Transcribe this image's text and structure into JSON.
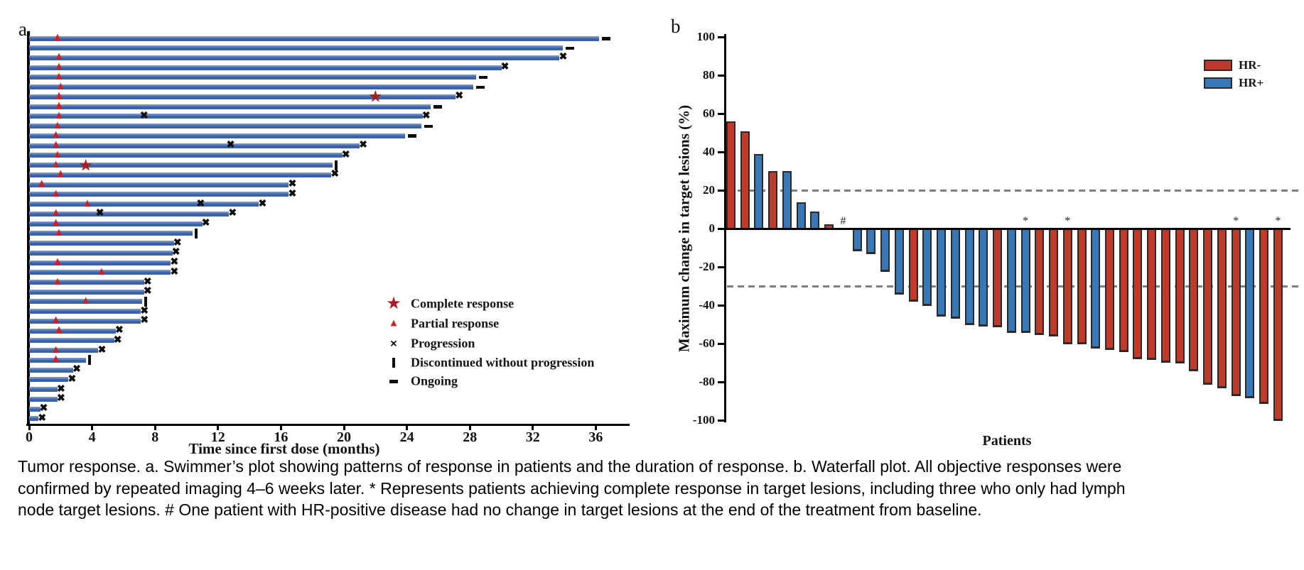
{
  "colors": {
    "swimmer_bar": "#3A62A7",
    "swimmer_bar_light": "#8CA2CE",
    "pr_triangle": "#C2252B",
    "cr_star": "#A81E24",
    "black_marker": "#0D0D0D",
    "hr_negative": "#C03A2B",
    "hr_positive": "#3878B4",
    "bar_outline": "#2B2B2B",
    "dashed_line": "#7F7F7F"
  },
  "chart_data": [
    {
      "type": "bar",
      "subtype": "swimmer",
      "panel_label": "a",
      "xlabel": "Time since first dose (months)",
      "x_ticks": [
        0,
        4,
        8,
        12,
        16,
        20,
        24,
        28,
        32,
        36
      ],
      "xlim": [
        0,
        38
      ],
      "duration_unit": "months",
      "legend": [
        {
          "symbol": "star",
          "label": "Complete response"
        },
        {
          "symbol": "triangle",
          "label": "Partial response"
        },
        {
          "symbol": "x",
          "label": "Progression"
        },
        {
          "symbol": "vbar",
          "label": "Discontinued without progression"
        },
        {
          "symbol": "dash",
          "label": "Ongoing"
        }
      ],
      "bars": [
        {
          "duration": 36.2,
          "end": "ongoing",
          "events": [
            {
              "type": "partial_response",
              "month": 1.8
            }
          ]
        },
        {
          "duration": 33.9,
          "end": "ongoing",
          "events": []
        },
        {
          "duration": 33.7,
          "end": "progression",
          "events": [
            {
              "type": "partial_response",
              "month": 1.9
            }
          ]
        },
        {
          "duration": 30.0,
          "end": "progression",
          "events": [
            {
              "type": "partial_response",
              "month": 1.9
            }
          ]
        },
        {
          "duration": 28.4,
          "end": "ongoing",
          "events": [
            {
              "type": "partial_response",
              "month": 1.9
            }
          ]
        },
        {
          "duration": 28.2,
          "end": "ongoing",
          "events": [
            {
              "type": "partial_response",
              "month": 2.0
            }
          ]
        },
        {
          "duration": 27.1,
          "end": "progression",
          "events": [
            {
              "type": "partial_response",
              "month": 1.9
            },
            {
              "type": "complete_response",
              "month": 22.0
            }
          ]
        },
        {
          "duration": 25.5,
          "end": "ongoing",
          "events": [
            {
              "type": "partial_response",
              "month": 1.9
            }
          ]
        },
        {
          "duration": 25.0,
          "end": "progression",
          "events": [
            {
              "type": "partial_response",
              "month": 1.9
            },
            {
              "type": "progression",
              "month": 7.3
            }
          ]
        },
        {
          "duration": 24.9,
          "end": "ongoing",
          "events": [
            {
              "type": "partial_response",
              "month": 1.8
            }
          ]
        },
        {
          "duration": 23.9,
          "end": "ongoing",
          "events": [
            {
              "type": "partial_response",
              "month": 1.7
            }
          ]
        },
        {
          "duration": 21.0,
          "end": "progression",
          "events": [
            {
              "type": "partial_response",
              "month": 1.7
            },
            {
              "type": "progression",
              "month": 12.8
            }
          ]
        },
        {
          "duration": 19.9,
          "end": "progression",
          "events": [
            {
              "type": "partial_response",
              "month": 1.8
            }
          ]
        },
        {
          "duration": 19.3,
          "end": "discontinued",
          "events": [
            {
              "type": "partial_response",
              "month": 1.7
            },
            {
              "type": "complete_response",
              "month": 3.6
            }
          ]
        },
        {
          "duration": 19.2,
          "end": "progression",
          "events": [
            {
              "type": "partial_response",
              "month": 2.0
            }
          ]
        },
        {
          "duration": 16.5,
          "end": "progression",
          "events": [
            {
              "type": "partial_response",
              "month": 0.8
            }
          ]
        },
        {
          "duration": 16.5,
          "end": "progression",
          "events": [
            {
              "type": "partial_response",
              "month": 1.7
            }
          ]
        },
        {
          "duration": 14.6,
          "end": "progression",
          "events": [
            {
              "type": "partial_response",
              "month": 3.7
            },
            {
              "type": "progression",
              "month": 10.9
            }
          ]
        },
        {
          "duration": 12.7,
          "end": "progression",
          "events": [
            {
              "type": "partial_response",
              "month": 1.7
            },
            {
              "type": "progression",
              "month": 4.5
            }
          ]
        },
        {
          "duration": 11.0,
          "end": "progression",
          "events": [
            {
              "type": "partial_response",
              "month": 1.7
            }
          ]
        },
        {
          "duration": 10.4,
          "end": "discontinued",
          "events": [
            {
              "type": "partial_response",
              "month": 1.9
            }
          ]
        },
        {
          "duration": 9.2,
          "end": "progression",
          "events": []
        },
        {
          "duration": 9.1,
          "end": "progression",
          "events": []
        },
        {
          "duration": 9.0,
          "end": "progression",
          "events": [
            {
              "type": "partial_response",
              "month": 1.8
            }
          ]
        },
        {
          "duration": 9.0,
          "end": "progression",
          "events": [
            {
              "type": "partial_response",
              "month": 4.6
            }
          ]
        },
        {
          "duration": 7.3,
          "end": "progression",
          "events": [
            {
              "type": "partial_response",
              "month": 1.8
            }
          ]
        },
        {
          "duration": 7.3,
          "end": "progression",
          "events": []
        },
        {
          "duration": 7.2,
          "end": "discontinued",
          "events": [
            {
              "type": "partial_response",
              "month": 3.6
            }
          ]
        },
        {
          "duration": 7.1,
          "end": "progression",
          "events": []
        },
        {
          "duration": 7.1,
          "end": "progression",
          "events": [
            {
              "type": "partial_response",
              "month": 1.7
            }
          ]
        },
        {
          "duration": 5.5,
          "end": "progression",
          "events": [
            {
              "type": "partial_response",
              "month": 1.9
            }
          ]
        },
        {
          "duration": 5.4,
          "end": "progression",
          "events": []
        },
        {
          "duration": 4.4,
          "end": "progression",
          "events": [
            {
              "type": "partial_response",
              "month": 1.7
            }
          ]
        },
        {
          "duration": 3.6,
          "end": "discontinued",
          "events": [
            {
              "type": "partial_response",
              "month": 1.7
            }
          ]
        },
        {
          "duration": 2.8,
          "end": "progression",
          "events": []
        },
        {
          "duration": 2.5,
          "end": "progression",
          "events": []
        },
        {
          "duration": 1.8,
          "end": "progression",
          "events": []
        },
        {
          "duration": 1.8,
          "end": "progression",
          "events": []
        },
        {
          "duration": 0.7,
          "end": "progression",
          "events": []
        },
        {
          "duration": 0.6,
          "end": "progression",
          "events": []
        }
      ]
    },
    {
      "type": "bar",
      "subtype": "waterfall",
      "panel_label": "b",
      "ylabel": "Maximum change in target lesions (%)",
      "xlabel": "Patients",
      "ylim": [
        -100,
        100
      ],
      "y_ticks": [
        100,
        80,
        60,
        40,
        20,
        0,
        -20,
        -40,
        -60,
        -80,
        -100
      ],
      "reference_lines": [
        20,
        -30
      ],
      "legend": [
        {
          "label": "HR-",
          "color_key": "hr_negative"
        },
        {
          "label": "HR+",
          "color_key": "hr_positive"
        }
      ],
      "patients": [
        {
          "value": 56,
          "hr": "HR-"
        },
        {
          "value": 51,
          "hr": "HR-"
        },
        {
          "value": 39,
          "hr": "HR+"
        },
        {
          "value": 30,
          "hr": "HR-"
        },
        {
          "value": 30,
          "hr": "HR+"
        },
        {
          "value": 14,
          "hr": "HR+"
        },
        {
          "value": 9,
          "hr": "HR+"
        },
        {
          "value": 2.5,
          "hr": "HR-"
        },
        {
          "value": 0,
          "hr": "HR+",
          "annotation": "#"
        },
        {
          "value": -11.5,
          "hr": "HR+"
        },
        {
          "value": -13,
          "hr": "HR+"
        },
        {
          "value": -22,
          "hr": "HR+"
        },
        {
          "value": -34,
          "hr": "HR+"
        },
        {
          "value": -37.5,
          "hr": "HR-"
        },
        {
          "value": -40,
          "hr": "HR+"
        },
        {
          "value": -45.5,
          "hr": "HR+"
        },
        {
          "value": -46.5,
          "hr": "HR+"
        },
        {
          "value": -50,
          "hr": "HR+"
        },
        {
          "value": -50.5,
          "hr": "HR+"
        },
        {
          "value": -51,
          "hr": "HR-"
        },
        {
          "value": -54,
          "hr": "HR+"
        },
        {
          "value": -54,
          "hr": "HR+",
          "annotation": "*"
        },
        {
          "value": -55,
          "hr": "HR-"
        },
        {
          "value": -56,
          "hr": "HR-"
        },
        {
          "value": -60,
          "hr": "HR-",
          "annotation": "*"
        },
        {
          "value": -60,
          "hr": "HR-"
        },
        {
          "value": -62,
          "hr": "HR+"
        },
        {
          "value": -63,
          "hr": "HR-"
        },
        {
          "value": -64,
          "hr": "HR-"
        },
        {
          "value": -67.5,
          "hr": "HR-"
        },
        {
          "value": -68,
          "hr": "HR-"
        },
        {
          "value": -69.5,
          "hr": "HR-"
        },
        {
          "value": -70,
          "hr": "HR-"
        },
        {
          "value": -74,
          "hr": "HR-"
        },
        {
          "value": -81,
          "hr": "HR-"
        },
        {
          "value": -83,
          "hr": "HR-"
        },
        {
          "value": -87,
          "hr": "HR-",
          "annotation": "*"
        },
        {
          "value": -88,
          "hr": "HR+"
        },
        {
          "value": -91,
          "hr": "HR-"
        },
        {
          "value": -100,
          "hr": "HR-",
          "annotation": "*"
        }
      ]
    }
  ],
  "caption": {
    "lines": [
      "Tumor response. a. Swimmer’s plot showing patterns of response in patients and the duration of response. b. Waterfall plot. All objective responses were",
      "confirmed by repeated imaging 4–6 weeks later. * Represents patients achieving complete response in target lesions, including three who only had lymph",
      "node target lesions. # One patient with HR-positive disease had no change in target lesions at the end of the treatment from baseline."
    ]
  }
}
